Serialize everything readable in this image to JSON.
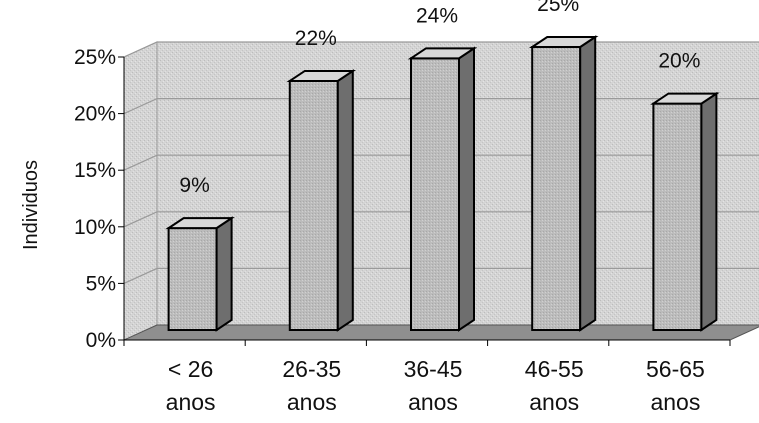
{
  "chart_data": {
    "type": "bar",
    "title": "",
    "ylabel": "Individuos",
    "xlabel": "",
    "categories": [
      [
        "< 26",
        "anos"
      ],
      [
        "26-35",
        "anos"
      ],
      [
        "36-45",
        "anos"
      ],
      [
        "46-55",
        "anos"
      ],
      [
        "56-65",
        "anos"
      ]
    ],
    "values": [
      9,
      22,
      24,
      25,
      20
    ],
    "data_labels": [
      "9%",
      "22%",
      "24%",
      "25%",
      "20%"
    ],
    "ylim": [
      0,
      25
    ],
    "yticks": [
      0,
      5,
      10,
      15,
      20,
      25
    ],
    "ytick_labels": [
      "0%",
      "5%",
      "10%",
      "15%",
      "20%",
      "25%"
    ],
    "grid": true,
    "legend": "none",
    "style": "3d-column",
    "colors": {
      "bar_front": "#bdbdbd",
      "bar_top": "#d8d8d8",
      "bar_side": "#6e6e6e",
      "back_wall": "#d6d6d6",
      "floor": "#8f8f8f",
      "gridline": "#9a9a9a",
      "outline": "#000000"
    }
  }
}
